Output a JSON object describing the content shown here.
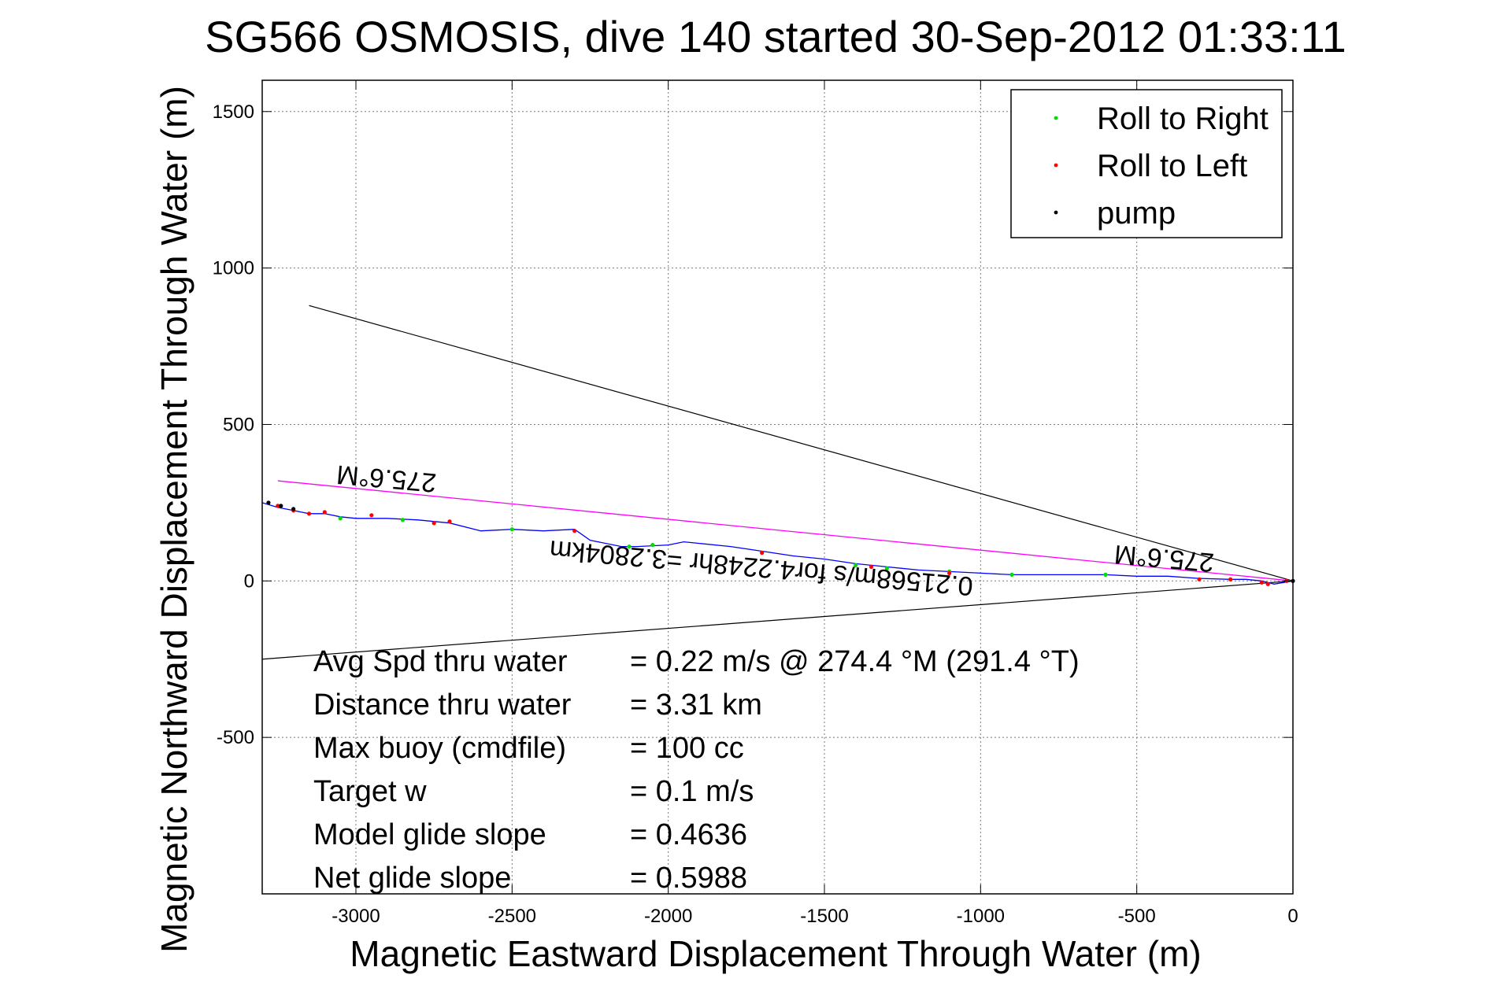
{
  "chart_data": {
    "type": "line",
    "title": "SG566 OSMOSIS, dive 140 started 30-Sep-2012 01:33:11",
    "xlabel": "Magnetic Eastward Displacement Through Water (m)",
    "ylabel": "Magnetic Northward Displacement Through Water (m)",
    "xlim": [
      -3300,
      0
    ],
    "ylim": [
      -1000,
      1600
    ],
    "xticks": [
      -3000,
      -2500,
      -2000,
      -1500,
      -1000,
      -500,
      0
    ],
    "yticks": [
      -500,
      0,
      500,
      1000,
      1500
    ],
    "grid": true,
    "legend_position": "top-right",
    "legend": [
      {
        "label": "Roll to Right",
        "color": "#00dd00"
      },
      {
        "label": "Roll to Left",
        "color": "#ff0000"
      },
      {
        "label": "pump",
        "color": "#000000"
      }
    ],
    "track": {
      "color": "#0000ff",
      "x": [
        0,
        -60,
        -100,
        -150,
        -200,
        -300,
        -400,
        -500,
        -600,
        -700,
        -800,
        -900,
        -1000,
        -1100,
        -1200,
        -1300,
        -1400,
        -1500,
        -1600,
        -1700,
        -1800,
        -1900,
        -1950,
        -2000,
        -2100,
        -2150,
        -2250,
        -2300,
        -2400,
        -2500,
        -2600,
        -2700,
        -2800,
        -2900,
        -3000,
        -3050,
        -3100,
        -3150,
        -3200,
        -3250,
        -3300
      ],
      "y": [
        0,
        -10,
        0,
        5,
        5,
        8,
        15,
        15,
        20,
        20,
        20,
        20,
        25,
        30,
        35,
        45,
        55,
        70,
        80,
        95,
        110,
        120,
        125,
        115,
        110,
        110,
        130,
        165,
        160,
        165,
        160,
        185,
        195,
        200,
        200,
        205,
        215,
        215,
        225,
        235,
        250
      ]
    },
    "roll_to_right_points": {
      "color": "#00dd00",
      "x": [
        -200,
        -600,
        -900,
        -1100,
        -1300,
        -1400,
        -1700,
        -2050,
        -2125,
        -2500,
        -2850,
        -3050
      ],
      "y": [
        5,
        20,
        20,
        30,
        40,
        50,
        90,
        115,
        110,
        165,
        195,
        200
      ]
    },
    "roll_to_left_points": {
      "color": "#ff0000",
      "x": [
        -20,
        -80,
        -100,
        -200,
        -300,
        -1100,
        -1350,
        -1700,
        -2300,
        -2700,
        -2750,
        -2950,
        -3100,
        -3150,
        -3200,
        -3250
      ],
      "y": [
        0,
        -10,
        -5,
        5,
        5,
        25,
        45,
        90,
        160,
        190,
        185,
        210,
        220,
        215,
        225,
        240
      ]
    },
    "pump_points": {
      "color": "#000000",
      "x": [
        0,
        -3280,
        -3240,
        -3200
      ],
      "y": [
        0,
        250,
        240,
        230
      ]
    },
    "heading_line": {
      "color": "#ff00ff",
      "x": [
        0,
        -3250
      ],
      "y": [
        0,
        320
      ]
    },
    "cone_lines": {
      "color": "#000000",
      "upper": {
        "x": [
          0,
          -3150
        ],
        "y": [
          0,
          880
        ]
      },
      "lower": {
        "x": [
          0,
          -3300
        ],
        "y": [
          0,
          -250
        ]
      }
    },
    "annotations": [
      {
        "text": "275.6°M",
        "x": -2900,
        "y": 355
      },
      {
        "text": "275.6°M",
        "x": -410,
        "y": 100
      },
      {
        "text": "0.21568m/s for4.2248hr =3.2804km",
        "x": -1700,
        "y": 70
      }
    ],
    "stats": [
      {
        "label": "Avg Spd thru water",
        "value": "=  0.22 m/s @ 274.4 °M (291.4 °T)"
      },
      {
        "label": "Distance thru water",
        "value": "=  3.31 km"
      },
      {
        "label": "Max buoy (cmdfile)",
        "value": "= 100 cc"
      },
      {
        "label": "Target w",
        "value": "= 0.1 m/s"
      },
      {
        "label": "Model glide slope",
        "value": "= 0.4636"
      },
      {
        "label": "Net glide slope",
        "value": "= 0.5988"
      }
    ]
  }
}
